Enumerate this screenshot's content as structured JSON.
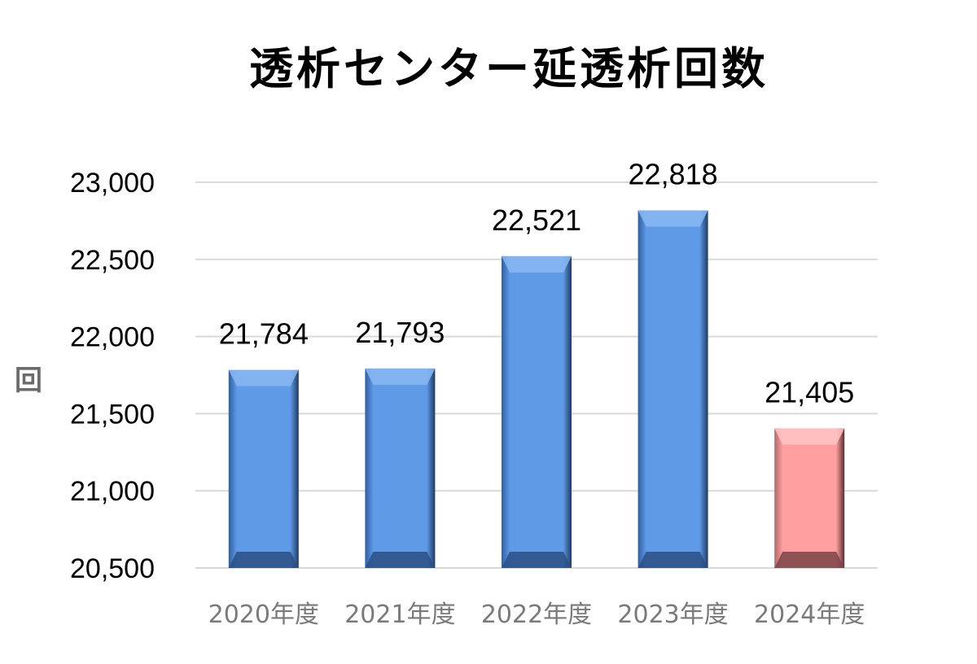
{
  "chart_data": {
    "type": "bar",
    "title": "透析センター延透析回数",
    "ylabel": "回",
    "xlabel": "",
    "categories": [
      "2020年度",
      "2021年度",
      "2022年度",
      "2023年度",
      "2024年度"
    ],
    "values": [
      21784,
      21793,
      22521,
      22818,
      21405
    ],
    "data_labels": [
      "21,784",
      "21,793",
      "22,521",
      "22,818",
      "21,405"
    ],
    "ylim": [
      20500,
      23000
    ],
    "yticks": [
      20500,
      21000,
      21500,
      22000,
      22500,
      23000
    ],
    "ytick_labels": [
      "20,500",
      "21,000",
      "21,500",
      "22,000",
      "22,500",
      "23,000"
    ],
    "grid": true,
    "bar_colors": [
      "#4a86d8",
      "#4a86d8",
      "#4a86d8",
      "#4a86d8",
      "#f29a9a"
    ]
  }
}
